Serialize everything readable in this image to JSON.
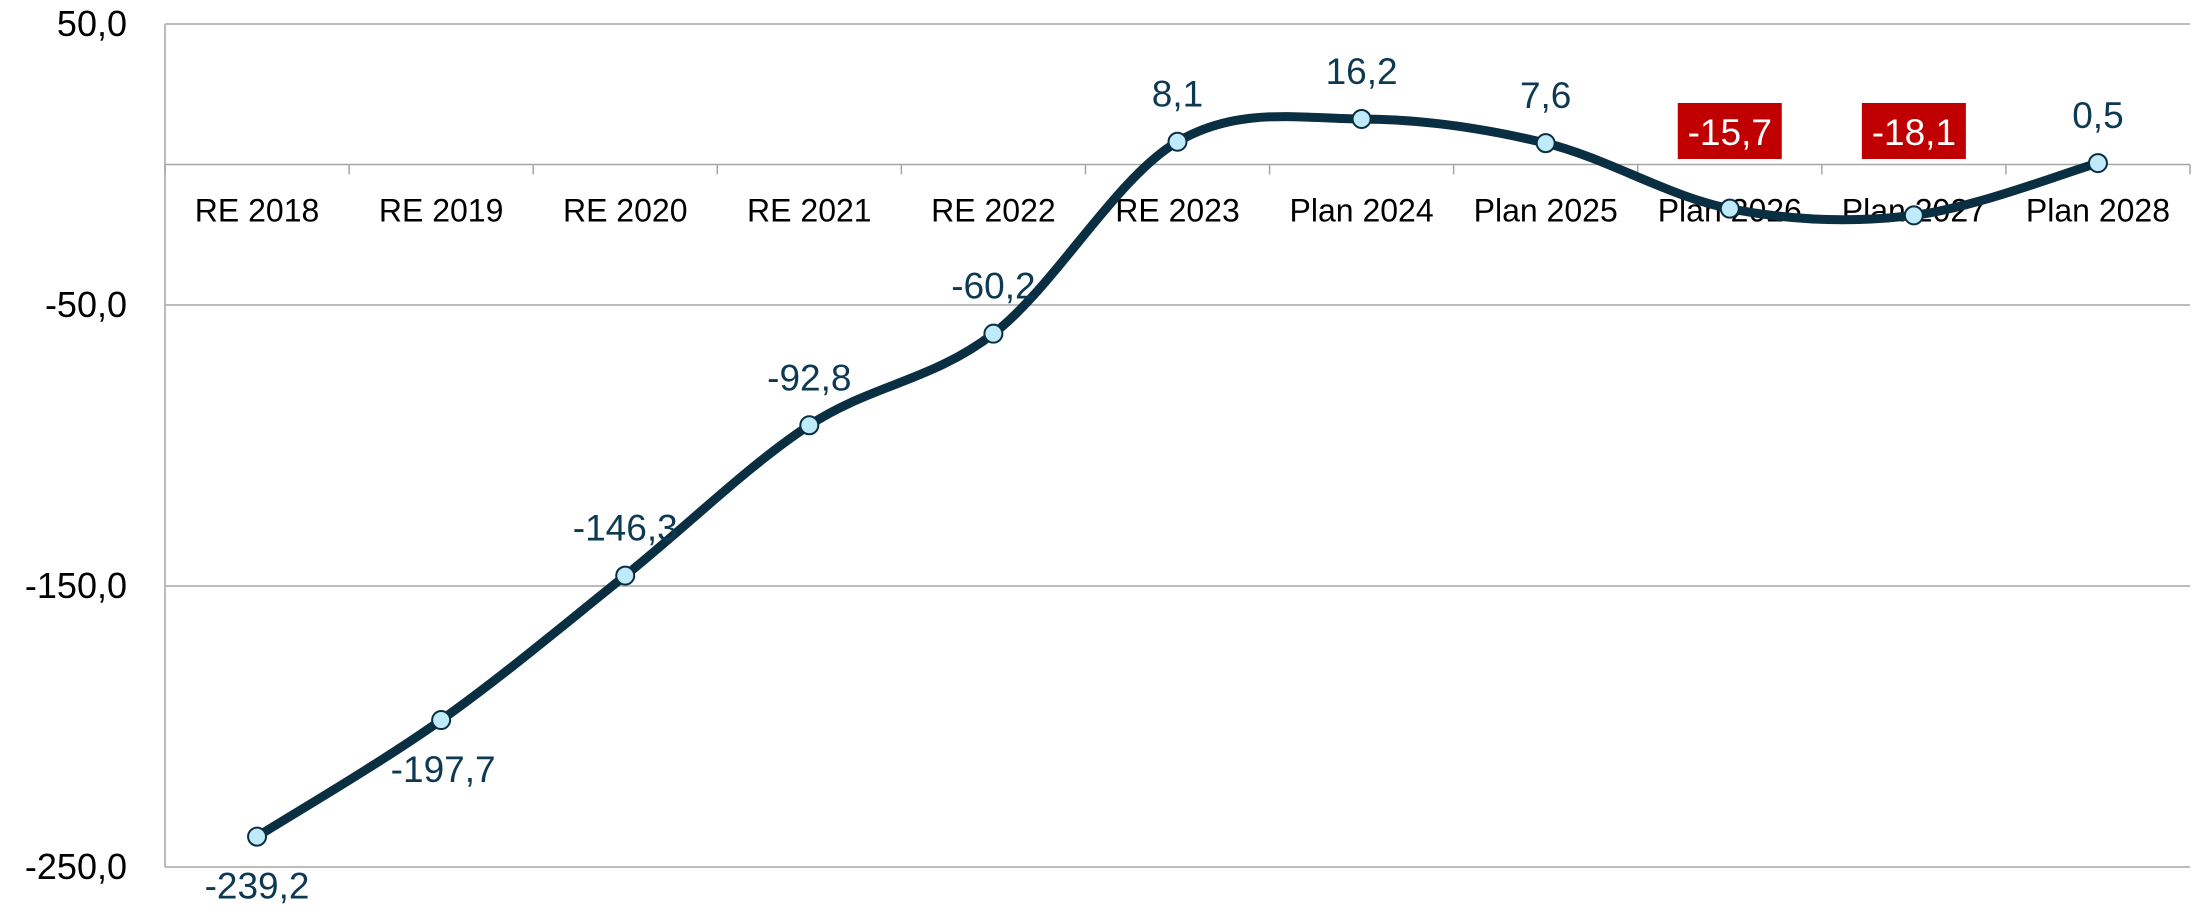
{
  "chart_data": {
    "type": "line",
    "title": "",
    "xlabel": "",
    "ylabel": "",
    "categories": [
      "RE 2018",
      "RE 2019",
      "RE 2020",
      "RE 2021",
      "RE 2022",
      "RE 2023",
      "Plan 2024",
      "Plan 2025",
      "Plan 2026",
      "Plan 2027",
      "Plan 2028"
    ],
    "series": [
      {
        "values": [
          -239.2,
          -197.7,
          -146.3,
          -92.8,
          -60.2,
          8.1,
          16.2,
          7.6,
          -15.7,
          -18.1,
          0.5
        ],
        "labels": [
          "-239,2",
          "-197,7",
          "-146,3",
          "-92,8",
          "-60,2",
          "8,1",
          "16,2",
          "7,6",
          "-15,7",
          "-18,1",
          "0,5"
        ],
        "highlighted": [
          false,
          false,
          false,
          false,
          false,
          false,
          false,
          false,
          true,
          true,
          false
        ]
      }
    ],
    "y_ticks": [
      50,
      -50,
      -150,
      -250
    ],
    "y_tick_labels": [
      "50,0",
      "-50,0",
      "-150,0",
      "-250,0"
    ],
    "ylim": [
      -250,
      50
    ],
    "grid": true,
    "legend": "none",
    "colors": {
      "line": "#0b2f42",
      "marker_fill": "#bfeaf9",
      "marker_stroke": "#0b2f42",
      "label": "#0d3a52",
      "highlight_bg": "#c00000",
      "highlight_text": "#ffffff",
      "grid": "#a6a6a6"
    }
  }
}
